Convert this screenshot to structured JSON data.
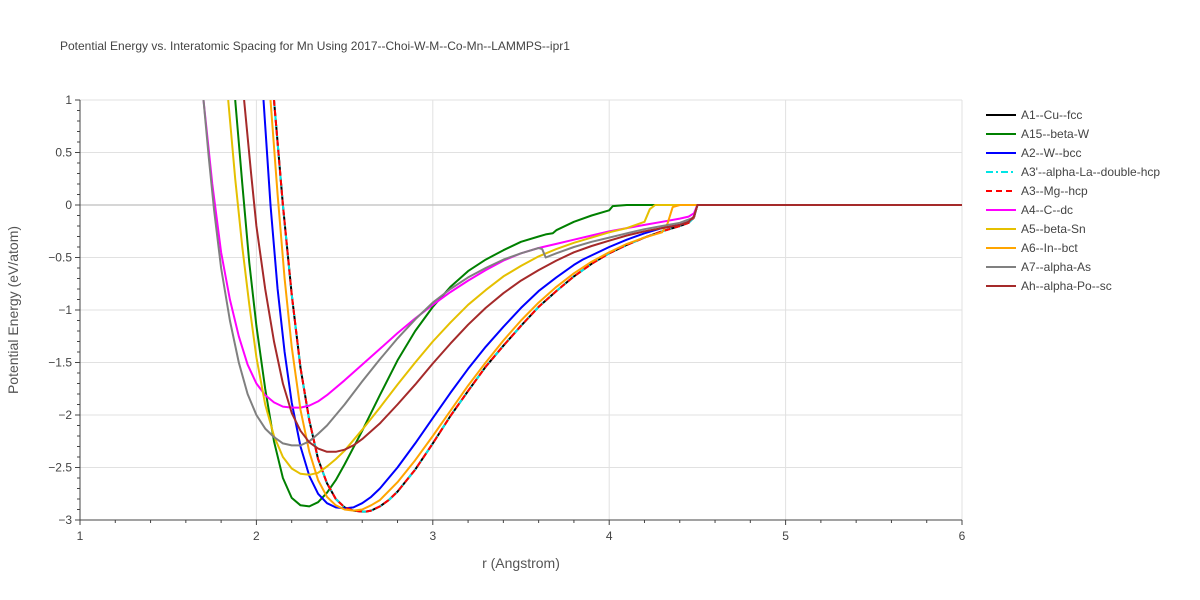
{
  "chart_data": {
    "type": "line",
    "title": "Potential Energy vs. Interatomic Spacing for Mn Using 2017--Choi-W-M--Co-Mn--LAMMPS--ipr1",
    "xlabel": "r (Angstrom)",
    "ylabel": "Potential Energy (eV/atom)",
    "xlim": [
      1,
      6
    ],
    "ylim": [
      -3,
      1
    ],
    "xticks": [
      "1",
      "2",
      "3",
      "4",
      "5",
      "6"
    ],
    "yticks": [
      "1",
      "0.5",
      "0",
      "−0.5",
      "−1",
      "−1.5",
      "−2",
      "−2.5",
      "−3"
    ],
    "ytick_values": [
      1,
      0.5,
      0,
      -0.5,
      -1,
      -1.5,
      -2,
      -2.5,
      -3
    ],
    "xtick_values": [
      1,
      2,
      3,
      4,
      5,
      6
    ],
    "grid": true,
    "legend_position": "right",
    "series": [
      {
        "name": "A1--Cu--fcc",
        "color": "#000000",
        "dash": "solid",
        "x": [
          2.1,
          2.15,
          2.2,
          2.25,
          2.3,
          2.35,
          2.4,
          2.45,
          2.5,
          2.55,
          2.6,
          2.62,
          2.65,
          2.7,
          2.75,
          2.8,
          2.9,
          3.0,
          3.1,
          3.2,
          3.3,
          3.4,
          3.5,
          3.6,
          3.7,
          3.8,
          3.9,
          4.0,
          4.1,
          4.2,
          4.3,
          4.4,
          4.45,
          4.48,
          4.5,
          5.0,
          6.0
        ],
        "y": [
          1.0,
          0.0,
          -0.85,
          -1.55,
          -2.05,
          -2.42,
          -2.65,
          -2.8,
          -2.88,
          -2.91,
          -2.92,
          -2.92,
          -2.91,
          -2.87,
          -2.81,
          -2.73,
          -2.52,
          -2.27,
          -2.01,
          -1.77,
          -1.54,
          -1.34,
          -1.15,
          -0.97,
          -0.82,
          -0.68,
          -0.56,
          -0.46,
          -0.38,
          -0.31,
          -0.25,
          -0.2,
          -0.17,
          -0.12,
          0.0,
          0.0,
          0.0
        ]
      },
      {
        "name": "A15--beta-W",
        "color": "#008000",
        "dash": "solid",
        "x": [
          1.88,
          1.92,
          1.96,
          2.0,
          2.05,
          2.1,
          2.15,
          2.2,
          2.25,
          2.3,
          2.35,
          2.4,
          2.45,
          2.5,
          2.6,
          2.7,
          2.8,
          2.9,
          3.0,
          3.1,
          3.2,
          3.3,
          3.4,
          3.5,
          3.6,
          3.64,
          3.68,
          3.7,
          3.8,
          3.9,
          4.0,
          4.02,
          4.1,
          4.2,
          4.3,
          4.4,
          4.5,
          5.0,
          6.0
        ],
        "y": [
          1.0,
          0.2,
          -0.55,
          -1.15,
          -1.75,
          -2.25,
          -2.6,
          -2.79,
          -2.86,
          -2.87,
          -2.83,
          -2.74,
          -2.62,
          -2.47,
          -2.15,
          -1.81,
          -1.48,
          -1.2,
          -0.97,
          -0.78,
          -0.63,
          -0.52,
          -0.43,
          -0.35,
          -0.3,
          -0.28,
          -0.27,
          -0.24,
          -0.16,
          -0.1,
          -0.05,
          -0.01,
          0.0,
          0.0,
          0.0,
          0.0,
          0.0,
          0.0,
          0.0
        ]
      },
      {
        "name": "A2--W--bcc",
        "color": "#0000ff",
        "dash": "solid",
        "x": [
          2.04,
          2.08,
          2.12,
          2.16,
          2.2,
          2.25,
          2.3,
          2.35,
          2.4,
          2.45,
          2.5,
          2.55,
          2.6,
          2.65,
          2.7,
          2.8,
          2.9,
          3.0,
          3.1,
          3.2,
          3.3,
          3.4,
          3.5,
          3.6,
          3.7,
          3.8,
          3.85,
          3.9,
          4.0,
          4.1,
          4.2,
          4.3,
          4.4,
          4.45,
          4.48,
          4.5,
          5.0,
          6.0
        ],
        "y": [
          1.0,
          0.0,
          -0.8,
          -1.4,
          -1.88,
          -2.3,
          -2.58,
          -2.75,
          -2.84,
          -2.88,
          -2.89,
          -2.88,
          -2.84,
          -2.78,
          -2.7,
          -2.5,
          -2.27,
          -2.03,
          -1.79,
          -1.56,
          -1.35,
          -1.16,
          -0.98,
          -0.82,
          -0.69,
          -0.57,
          -0.52,
          -0.48,
          -0.4,
          -0.33,
          -0.27,
          -0.22,
          -0.19,
          -0.16,
          -0.11,
          0.0,
          0.0,
          0.0
        ]
      },
      {
        "name": "A3'--alpha-La--double-hcp",
        "color": "#00e5e5",
        "dash": "dashdot",
        "x": [
          2.1,
          2.15,
          2.2,
          2.25,
          2.3,
          2.35,
          2.4,
          2.45,
          2.5,
          2.55,
          2.6,
          2.62,
          2.65,
          2.7,
          2.75,
          2.8,
          2.9,
          3.0,
          3.1,
          3.2,
          3.3,
          3.4,
          3.5,
          3.6,
          3.7,
          3.8,
          3.9,
          4.0,
          4.1,
          4.2,
          4.3,
          4.4,
          4.45,
          4.48,
          4.5,
          5.0,
          6.0
        ],
        "y": [
          1.0,
          0.0,
          -0.85,
          -1.55,
          -2.05,
          -2.42,
          -2.65,
          -2.8,
          -2.88,
          -2.91,
          -2.92,
          -2.92,
          -2.91,
          -2.87,
          -2.81,
          -2.73,
          -2.52,
          -2.27,
          -2.01,
          -1.77,
          -1.54,
          -1.34,
          -1.15,
          -0.97,
          -0.82,
          -0.68,
          -0.56,
          -0.46,
          -0.38,
          -0.31,
          -0.25,
          -0.2,
          -0.17,
          -0.12,
          0.0,
          0.0,
          0.0
        ]
      },
      {
        "name": "A3--Mg--hcp",
        "color": "#ff0000",
        "dash": "dash",
        "x": [
          2.1,
          2.15,
          2.2,
          2.25,
          2.3,
          2.35,
          2.4,
          2.45,
          2.5,
          2.55,
          2.6,
          2.62,
          2.65,
          2.7,
          2.75,
          2.8,
          2.9,
          3.0,
          3.1,
          3.2,
          3.3,
          3.4,
          3.5,
          3.6,
          3.7,
          3.8,
          3.9,
          4.0,
          4.1,
          4.2,
          4.3,
          4.4,
          4.45,
          4.48,
          4.5,
          5.0,
          6.0
        ],
        "y": [
          1.0,
          0.0,
          -0.85,
          -1.55,
          -2.05,
          -2.42,
          -2.65,
          -2.8,
          -2.88,
          -2.91,
          -2.92,
          -2.92,
          -2.91,
          -2.87,
          -2.81,
          -2.73,
          -2.52,
          -2.27,
          -2.01,
          -1.77,
          -1.54,
          -1.34,
          -1.15,
          -0.97,
          -0.82,
          -0.68,
          -0.56,
          -0.46,
          -0.38,
          -0.31,
          -0.25,
          -0.2,
          -0.17,
          -0.12,
          0.0,
          0.0,
          0.0
        ]
      },
      {
        "name": "A4--C--dc",
        "color": "#ff00ff",
        "dash": "solid",
        "x": [
          1.7,
          1.75,
          1.8,
          1.85,
          1.9,
          1.95,
          2.0,
          2.05,
          2.1,
          2.15,
          2.2,
          2.25,
          2.3,
          2.35,
          2.4,
          2.5,
          2.6,
          2.7,
          2.8,
          2.9,
          3.0,
          3.1,
          3.2,
          3.3,
          3.4,
          3.5,
          3.6,
          3.7,
          3.8,
          3.9,
          4.0,
          4.1,
          4.2,
          4.3,
          4.4,
          4.45,
          4.48,
          4.5,
          5.0,
          6.0
        ],
        "y": [
          1.0,
          0.2,
          -0.45,
          -0.9,
          -1.25,
          -1.52,
          -1.7,
          -1.81,
          -1.88,
          -1.92,
          -1.93,
          -1.93,
          -1.91,
          -1.87,
          -1.81,
          -1.67,
          -1.52,
          -1.37,
          -1.22,
          -1.08,
          -0.95,
          -0.83,
          -0.72,
          -0.62,
          -0.53,
          -0.46,
          -0.41,
          -0.37,
          -0.33,
          -0.29,
          -0.25,
          -0.22,
          -0.19,
          -0.16,
          -0.13,
          -0.11,
          -0.08,
          0.0,
          0.0,
          0.0
        ]
      },
      {
        "name": "A5--beta-Sn",
        "color": "#e5c000",
        "dash": "solid",
        "x": [
          1.84,
          1.88,
          1.92,
          1.96,
          2.0,
          2.05,
          2.1,
          2.15,
          2.2,
          2.25,
          2.3,
          2.35,
          2.4,
          2.45,
          2.5,
          2.6,
          2.7,
          2.8,
          2.9,
          3.0,
          3.1,
          3.2,
          3.3,
          3.4,
          3.5,
          3.6,
          3.7,
          3.8,
          3.9,
          4.0,
          4.1,
          4.2,
          4.23,
          4.26,
          4.3,
          4.5,
          5.0,
          6.0
        ],
        "y": [
          1.0,
          0.25,
          -0.4,
          -0.95,
          -1.45,
          -1.9,
          -2.2,
          -2.4,
          -2.51,
          -2.56,
          -2.57,
          -2.55,
          -2.49,
          -2.42,
          -2.34,
          -2.14,
          -1.93,
          -1.71,
          -1.5,
          -1.3,
          -1.12,
          -0.95,
          -0.81,
          -0.68,
          -0.58,
          -0.49,
          -0.42,
          -0.36,
          -0.31,
          -0.26,
          -0.22,
          -0.16,
          -0.04,
          0.0,
          0.0,
          0.0,
          0.0,
          0.0
        ]
      },
      {
        "name": "A6--In--bct",
        "color": "#ffa500",
        "dash": "solid",
        "x": [
          2.08,
          2.12,
          2.16,
          2.2,
          2.25,
          2.3,
          2.35,
          2.4,
          2.45,
          2.5,
          2.55,
          2.6,
          2.65,
          2.7,
          2.8,
          2.9,
          3.0,
          3.1,
          3.2,
          3.3,
          3.4,
          3.5,
          3.6,
          3.7,
          3.8,
          3.9,
          4.0,
          4.1,
          4.2,
          4.3,
          4.33,
          4.36,
          4.4,
          4.5,
          5.0,
          6.0
        ],
        "y": [
          1.0,
          0.1,
          -0.7,
          -1.35,
          -1.95,
          -2.35,
          -2.62,
          -2.78,
          -2.86,
          -2.9,
          -2.91,
          -2.9,
          -2.86,
          -2.81,
          -2.64,
          -2.43,
          -2.2,
          -1.96,
          -1.72,
          -1.5,
          -1.29,
          -1.1,
          -0.93,
          -0.78,
          -0.65,
          -0.54,
          -0.45,
          -0.37,
          -0.31,
          -0.26,
          -0.18,
          -0.02,
          0.0,
          0.0,
          0.0,
          0.0
        ]
      },
      {
        "name": "A7--alpha-As",
        "color": "#808080",
        "dash": "solid",
        "x": [
          1.7,
          1.73,
          1.76,
          1.8,
          1.85,
          1.9,
          1.95,
          2.0,
          2.05,
          2.1,
          2.15,
          2.2,
          2.25,
          2.3,
          2.35,
          2.4,
          2.5,
          2.6,
          2.7,
          2.8,
          2.9,
          3.0,
          3.1,
          3.2,
          3.3,
          3.4,
          3.5,
          3.58,
          3.6,
          3.62,
          3.64,
          3.7,
          3.8,
          3.9,
          4.0,
          4.1,
          4.2,
          4.3,
          4.4,
          4.48,
          4.5,
          5.0,
          6.0
        ],
        "y": [
          1.0,
          0.45,
          -0.05,
          -0.6,
          -1.1,
          -1.5,
          -1.8,
          -2.0,
          -2.13,
          -2.21,
          -2.27,
          -2.29,
          -2.29,
          -2.25,
          -2.18,
          -2.1,
          -1.9,
          -1.68,
          -1.47,
          -1.27,
          -1.09,
          -0.93,
          -0.8,
          -0.69,
          -0.6,
          -0.52,
          -0.46,
          -0.42,
          -0.41,
          -0.42,
          -0.5,
          -0.46,
          -0.4,
          -0.35,
          -0.31,
          -0.27,
          -0.23,
          -0.2,
          -0.17,
          -0.12,
          0.0,
          0.0,
          0.0
        ]
      },
      {
        "name": "Ah--alpha-Po--sc",
        "color": "#a52a2a",
        "dash": "solid",
        "x": [
          1.93,
          1.97,
          2.0,
          2.05,
          2.1,
          2.15,
          2.2,
          2.25,
          2.3,
          2.35,
          2.4,
          2.45,
          2.5,
          2.55,
          2.6,
          2.7,
          2.8,
          2.9,
          3.0,
          3.1,
          3.2,
          3.3,
          3.4,
          3.5,
          3.6,
          3.7,
          3.8,
          3.9,
          4.0,
          4.1,
          4.2,
          4.3,
          4.4,
          4.45,
          4.48,
          4.5,
          5.0,
          6.0
        ],
        "y": [
          1.0,
          0.3,
          -0.2,
          -0.8,
          -1.3,
          -1.7,
          -1.98,
          -2.15,
          -2.26,
          -2.32,
          -2.35,
          -2.35,
          -2.33,
          -2.29,
          -2.23,
          -2.08,
          -1.9,
          -1.71,
          -1.51,
          -1.32,
          -1.14,
          -0.98,
          -0.84,
          -0.72,
          -0.62,
          -0.53,
          -0.45,
          -0.39,
          -0.34,
          -0.29,
          -0.25,
          -0.22,
          -0.19,
          -0.16,
          -0.11,
          0.0,
          0.0,
          0.0
        ]
      }
    ]
  }
}
